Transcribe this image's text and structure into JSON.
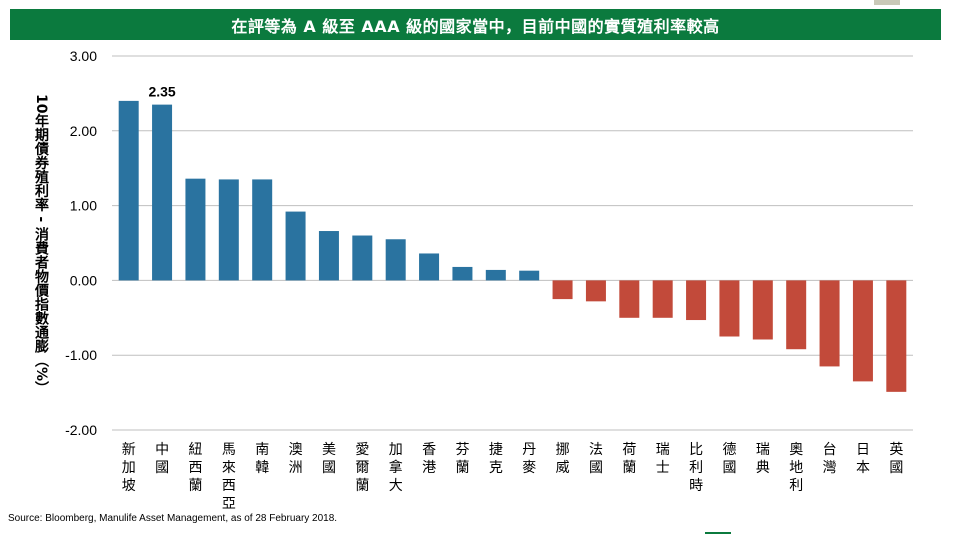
{
  "title": "在評等為 A 級至 AAA 級的國家當中，目前中國的實質殖利率較高",
  "source": "Source: Bloomberg, Manulife Asset Management, as of 28 February 2018.",
  "colors": {
    "title_bg": "#0b7a3e",
    "positive": "#2a73a0",
    "negative": "#c24a3a",
    "grid": "#bfbfbf"
  },
  "chart_data": {
    "type": "bar",
    "title": "在評等為 A 級至 AAA 級的國家當中，目前中國的實質殖利率較高",
    "ylabel": "10年期債券殖利率 - 消費者物價指數通膨（%）",
    "xlabel": "",
    "ylim": [
      -2.0,
      3.0
    ],
    "yticks": [
      "3.00",
      "2.00",
      "1.00",
      "0.00",
      "-1.00",
      "-2.00"
    ],
    "grid": true,
    "categories": [
      "新加坡",
      "中國",
      "紐西蘭",
      "馬來西亞",
      "南韓",
      "澳洲",
      "美國",
      "愛爾蘭",
      "加拿大",
      "香港",
      "芬蘭",
      "捷克",
      "丹麥",
      "挪威",
      "法國",
      "荷蘭",
      "瑞士",
      "比利時",
      "德國",
      "瑞典",
      "奧地利",
      "台灣",
      "日本",
      "英國"
    ],
    "values": [
      2.4,
      2.35,
      1.36,
      1.35,
      1.35,
      0.92,
      0.66,
      0.6,
      0.55,
      0.36,
      0.18,
      0.14,
      0.13,
      -0.25,
      -0.28,
      -0.5,
      -0.5,
      -0.53,
      -0.75,
      -0.79,
      -0.92,
      -1.15,
      -1.35,
      -1.49
    ],
    "annotations": [
      {
        "category": "中國",
        "text": "2.35"
      }
    ]
  }
}
